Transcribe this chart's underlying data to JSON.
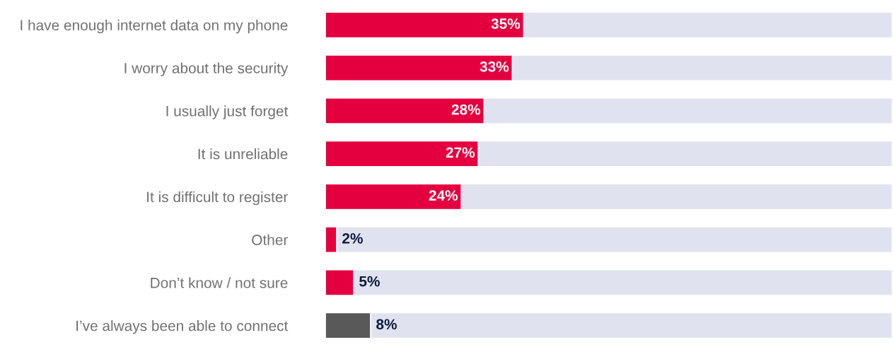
{
  "chart_data": {
    "type": "bar",
    "orientation": "horizontal",
    "stacked": true,
    "categories": [
      "I have enough internet data on my phone",
      "I worry about the security",
      "I usually just forget",
      "It is unreliable",
      "It is difficult to register",
      "Other",
      "Don’t know / not sure",
      "I’ve always been able to connect"
    ],
    "series": [
      {
        "colors": [
          "#e4003f",
          "#e4003f",
          "#e4003f",
          "#e4003f",
          "#e4003f",
          "#e4003f",
          "#e4003f",
          "#595959"
        ],
        "values": [
          35,
          33,
          28,
          27,
          24,
          2,
          5,
          8
        ],
        "value_labels": [
          "35%",
          "33%",
          "28%",
          "27%",
          "24%",
          "2%",
          "5%",
          "8%"
        ]
      },
      {
        "color": "#e0e3ef",
        "values": [
          65,
          67,
          72,
          73,
          76,
          98,
          95,
          92
        ]
      }
    ],
    "grid": false,
    "legend": false,
    "tick_labels": "y"
  }
}
